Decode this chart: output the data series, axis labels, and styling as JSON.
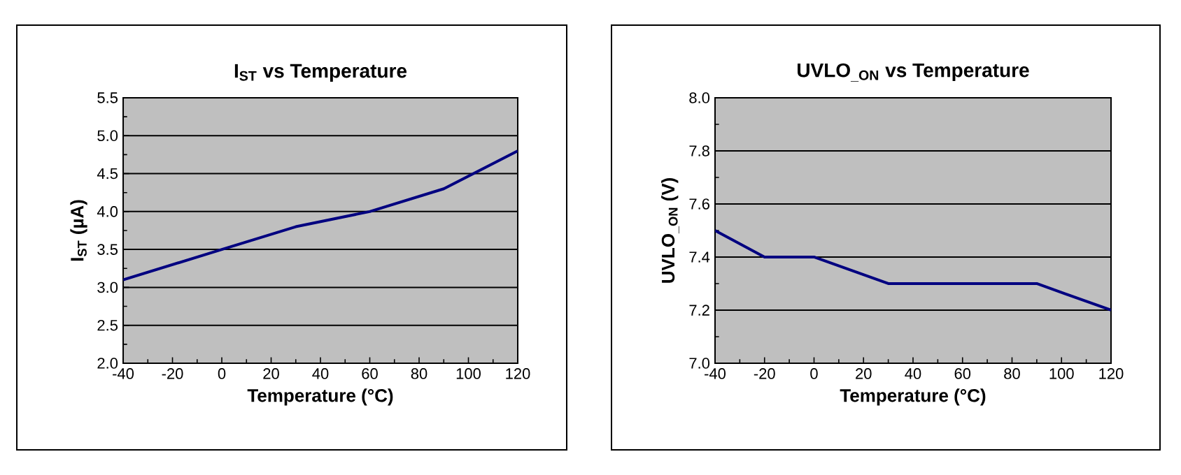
{
  "chart_data": [
    {
      "type": "line",
      "title": "I$_{ST}$ vs Temperature",
      "xlabel": "Temperature (°C)",
      "ylabel": "I$_{ST}$ (µA)",
      "x": [
        -40,
        0,
        30,
        60,
        90,
        120
      ],
      "series": [
        {
          "color": "#000080",
          "values": [
            3.1,
            3.5,
            3.8,
            4.0,
            4.3,
            4.8
          ]
        }
      ],
      "xlim": [
        -40,
        120
      ],
      "xticks": [
        -40,
        -20,
        0,
        20,
        40,
        60,
        80,
        100,
        120
      ],
      "ylim": [
        2.0,
        5.5
      ],
      "yticks": [
        {
          "value": 2.0,
          "label": "2.0"
        },
        2.5,
        {
          "value": 3.0,
          "label": "3.0"
        },
        3.5,
        {
          "value": 4.0,
          "label": "4.0"
        },
        4.5,
        {
          "value": 5.0,
          "label": "5.0"
        },
        5.5
      ],
      "grid": "y",
      "line_style": "solid",
      "marker": "none"
    },
    {
      "type": "line",
      "title": "UVLO$_{_ON}$ vs Temperature",
      "xlabel": "Temperature (°C)",
      "ylabel": "UVLO$_{_ON}$ (V)",
      "x": [
        -40,
        -20,
        0,
        30,
        60,
        90,
        120
      ],
      "series": [
        {
          "color": "#000080",
          "values": [
            7.5,
            7.4,
            7.4,
            7.3,
            7.3,
            7.3,
            7.2
          ]
        }
      ],
      "xlim": [
        -40,
        120
      ],
      "xticks": [
        -40,
        -20,
        0,
        20,
        40,
        60,
        80,
        100,
        120
      ],
      "ylim": [
        7.0,
        8.0
      ],
      "yticks": [
        {
          "value": 7.0,
          "label": "7.0"
        },
        7.2,
        7.4,
        7.6,
        7.8,
        {
          "value": 8.0,
          "label": "8.0"
        }
      ],
      "grid": "y",
      "line_style": "solid",
      "marker": "none"
    }
  ]
}
